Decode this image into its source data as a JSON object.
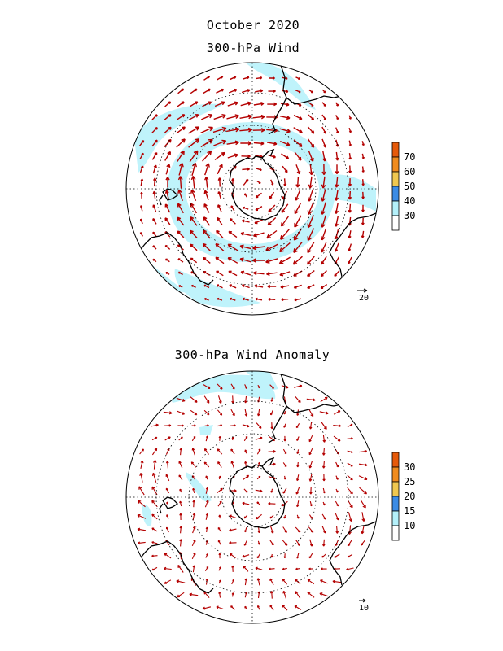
{
  "header": {
    "date": "October 2020",
    "top_title": "300-hPa Wind",
    "bottom_title": "300-hPa Wind Anomaly"
  },
  "maps": [
    {
      "id": "wind",
      "reference_vector": "20",
      "legend": {
        "labels": [
          "30",
          "40",
          "50",
          "60",
          "70"
        ],
        "colors": [
          "#ffffff",
          "#b4f0fa",
          "#3c8ce6",
          "#f0c850",
          "#f08c1e",
          "#e65a0a"
        ]
      },
      "shading": "wind speed >= 30 shaded light cyan",
      "arrow_color": "#b40000",
      "land_outline": "Antarctica, South America, Africa, Australia, New Zealand"
    },
    {
      "id": "anomaly",
      "reference_vector": "10",
      "legend": {
        "labels": [
          "10",
          "15",
          "20",
          "25",
          "30"
        ],
        "colors": [
          "#ffffff",
          "#b4f0fa",
          "#3c8ce6",
          "#f0c850",
          "#f08c1e",
          "#e65a0a"
        ]
      },
      "shading": "anomaly >= 10 shaded light cyan",
      "arrow_color": "#b40000",
      "land_outline": "Antarctica, South America, Africa, Australia, New Zealand"
    }
  ]
}
